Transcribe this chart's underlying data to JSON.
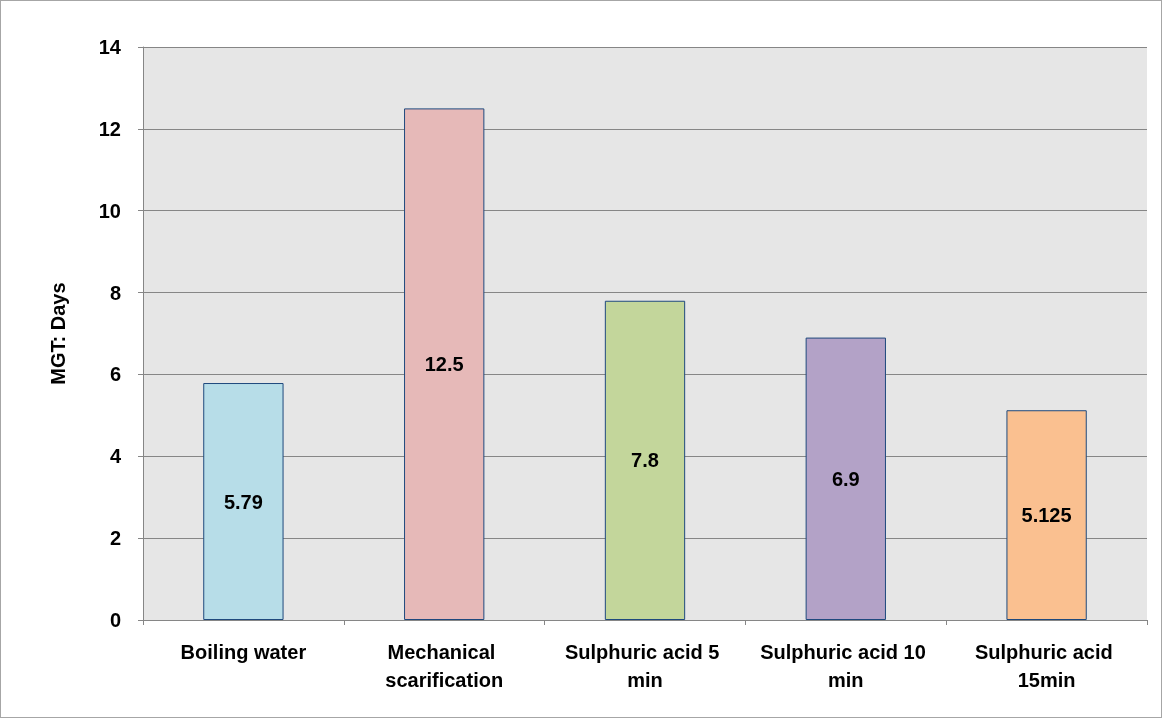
{
  "chart_data": {
    "type": "bar",
    "ylabel": "MGT: Days",
    "categories": [
      "Boiling water",
      "Mechanical scarification",
      "Sulphuric acid 5 min",
      "Sulphuric acid 10 min",
      "Sulphuric acid 15min"
    ],
    "values": [
      5.79,
      12.5,
      7.8,
      6.9,
      5.125
    ],
    "colors": [
      "#b7dde8",
      "#e6b9b8",
      "#c3d69b",
      "#b3a2c7",
      "#fac090"
    ],
    "ylim": [
      0,
      14
    ],
    "yticks": [
      0,
      2,
      4,
      6,
      8,
      10,
      12,
      14
    ],
    "grid": "y",
    "data_labels": true
  }
}
